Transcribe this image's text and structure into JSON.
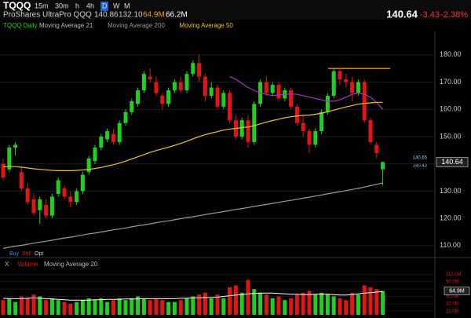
{
  "toolbar": {
    "symbol": "TQQQ",
    "intervals": [
      "15m",
      "30m",
      "h",
      "4h",
      "D",
      "W",
      "M"
    ]
  },
  "quote": {
    "name": "ProShares UltraPro QQQ",
    "high": "140.86",
    "low": "132.10",
    "volume": "64.9M",
    "avg_volume": "66.2M",
    "last": "140.64",
    "change": "-3.43",
    "change_pct": "-2.38%"
  },
  "chart_data": {
    "type": "candlestick",
    "title": "TQQQ Daily",
    "up_color": "#1fd11f",
    "down_color": "#e31414",
    "open": [
      140,
      138,
      146,
      137,
      131,
      127,
      123,
      125,
      121,
      129,
      131,
      128,
      126,
      130,
      137,
      141,
      146,
      149,
      151,
      148,
      155,
      159,
      162,
      167,
      172,
      170,
      165,
      162,
      167,
      170,
      167,
      173,
      177,
      172,
      165,
      168,
      161,
      166,
      156,
      150,
      156,
      148,
      162,
      170,
      166,
      169,
      164,
      167,
      161,
      155,
      152,
      147,
      152,
      159,
      165,
      174,
      171,
      170,
      166,
      170,
      156,
      147,
      138
    ],
    "high": [
      142,
      147,
      148,
      139,
      133,
      129,
      128,
      127,
      129,
      135,
      132,
      130,
      131,
      137,
      143,
      147,
      151,
      153,
      153,
      156,
      160,
      164,
      168,
      174,
      175,
      172,
      166,
      168,
      171,
      172,
      174,
      178,
      180,
      173,
      170,
      169,
      167,
      167,
      158,
      157,
      158,
      163,
      171,
      172,
      170,
      170,
      168,
      168,
      162,
      158,
      153,
      153,
      160,
      166,
      175,
      175,
      173,
      172,
      171,
      171,
      157,
      148,
      140.86
    ],
    "low": [
      134,
      137,
      143,
      130,
      125,
      121,
      118,
      120,
      120,
      128,
      127,
      124,
      125,
      129,
      136,
      140,
      145,
      148,
      147,
      147,
      154,
      158,
      161,
      166,
      170,
      165,
      160,
      161,
      166,
      166,
      166,
      172,
      170,
      163,
      164,
      160,
      160,
      155,
      149,
      149,
      146,
      147,
      161,
      165,
      165,
      163,
      163,
      160,
      154,
      150,
      144,
      146,
      151,
      158,
      164,
      169,
      168,
      163,
      165,
      155,
      147,
      142,
      132.1
    ],
    "close": [
      135,
      146,
      147,
      131,
      126,
      122,
      127,
      121,
      128,
      134,
      128,
      126,
      130,
      136,
      142,
      146,
      150,
      152,
      148,
      155,
      159,
      163,
      167,
      173,
      171,
      166,
      162,
      167,
      170,
      167,
      173,
      177,
      172,
      165,
      168,
      161,
      166,
      156,
      150,
      156,
      148,
      162,
      170,
      166,
      169,
      164,
      167,
      161,
      155,
      152,
      147,
      152,
      159,
      165,
      174,
      171,
      170,
      166,
      170,
      156,
      148,
      144,
      140.64
    ],
    "ylim": [
      106.5,
      188.6
    ],
    "yticks": [
      {
        "value": 110,
        "label": "110.00"
      },
      {
        "value": 120,
        "label": "120.00"
      },
      {
        "value": 130,
        "label": "130.00"
      },
      {
        "value": 140,
        "label": "140.00"
      },
      {
        "value": 150,
        "label": "150.00"
      },
      {
        "value": 160,
        "label": "160.00"
      },
      {
        "value": 170,
        "label": "170.00"
      },
      {
        "value": 180,
        "label": "180.00"
      }
    ],
    "grid": true,
    "bid": "140.65",
    "ask": "140.43",
    "hline": {
      "value": 175,
      "color": "#e07b1a"
    },
    "series": [
      {
        "name": "Moving Average 21",
        "color": "#b02cc4",
        "values": [
          null,
          null,
          null,
          null,
          null,
          null,
          null,
          null,
          null,
          null,
          null,
          null,
          null,
          null,
          null,
          null,
          null,
          null,
          null,
          null,
          null,
          null,
          null,
          null,
          null,
          null,
          null,
          null,
          null,
          null,
          null,
          null,
          null,
          null,
          null,
          null,
          null,
          172,
          171,
          169.5,
          168,
          167,
          166,
          165.5,
          165,
          165.3,
          165.5,
          165.6,
          165.5,
          165,
          164.5,
          164,
          163.5,
          163,
          163,
          163.5,
          164.5,
          165.5,
          166,
          165.5,
          164.5,
          162.5,
          160
        ]
      },
      {
        "name": "Moving Average 200",
        "color": "#9a9a9a",
        "values": [
          109,
          109.4,
          109.8,
          110.1,
          110.5,
          110.9,
          111.3,
          111.6,
          112,
          112.4,
          112.8,
          113.1,
          113.5,
          113.9,
          114.3,
          114.6,
          115,
          115.4,
          115.8,
          116.1,
          116.5,
          116.9,
          117.3,
          117.6,
          118,
          118.4,
          118.8,
          119.1,
          119.5,
          119.9,
          120.3,
          120.6,
          121,
          121.4,
          121.8,
          122.1,
          122.5,
          122.9,
          123.3,
          123.6,
          124,
          124.4,
          124.8,
          125.1,
          125.5,
          125.9,
          126.3,
          126.6,
          127,
          127.4,
          127.8,
          128.2,
          128.6,
          129,
          129.4,
          129.8,
          130.2,
          130.6,
          131,
          131.5,
          132,
          132.5,
          133
        ]
      },
      {
        "name": "Moving Average 50",
        "color": "#f0c419",
        "values": [
          139,
          139,
          139,
          138.8,
          138.5,
          138.2,
          138,
          137.8,
          137.6,
          137.5,
          137.5,
          137.5,
          137.6,
          137.8,
          138,
          138.3,
          138.7,
          139.2,
          139.7,
          140.3,
          141,
          141.8,
          142.6,
          143.4,
          144.2,
          144.9,
          145.5,
          146.1,
          146.8,
          147.5,
          148.3,
          149.2,
          150,
          150.7,
          151.3,
          151.8,
          152.4,
          152.8,
          153,
          153.3,
          153.5,
          154,
          154.7,
          155.3,
          155.9,
          156.4,
          156.9,
          157.3,
          157.6,
          157.8,
          157.9,
          158.2,
          158.6,
          159.1,
          159.7,
          160.3,
          160.9,
          161.4,
          161.9,
          162.2,
          162.4,
          162.6,
          162.6
        ]
      }
    ]
  },
  "volume_chart": {
    "type": "bar",
    "close_button": "X",
    "title": "Volume",
    "values": [
      40,
      45,
      35,
      50,
      45,
      55,
      50,
      40,
      45,
      40,
      35,
      30,
      35,
      40,
      45,
      40,
      45,
      35,
      40,
      45,
      40,
      45,
      50,
      45,
      40,
      45,
      40,
      35,
      35,
      40,
      45,
      50,
      55,
      60,
      45,
      55,
      45,
      75,
      80,
      60,
      95,
      70,
      60,
      55,
      45,
      50,
      40,
      45,
      55,
      60,
      65,
      55,
      60,
      55,
      50,
      45,
      40,
      60,
      55,
      80,
      75,
      70,
      64.9
    ],
    "ylim": [
      0,
      130
    ],
    "yticks": [
      {
        "value": 10,
        "label": "10.0M"
      },
      {
        "value": 30,
        "label": "30.0M"
      },
      {
        "value": 50,
        "label": "50.0M"
      },
      {
        "value": 70,
        "label": "70.0M"
      },
      {
        "value": 90,
        "label": "90.0M"
      },
      {
        "value": 110,
        "label": "110.0M"
      }
    ],
    "series": [
      {
        "name": "Moving Average 20",
        "color": "#ffffff",
        "values": [
          45,
          44,
          44,
          44,
          45,
          46,
          45,
          44,
          43,
          42,
          41,
          40,
          40,
          40,
          40,
          41,
          41,
          42,
          42,
          42,
          43,
          43,
          43,
          44,
          44,
          44,
          44,
          44,
          44,
          45,
          45,
          46,
          46,
          47,
          47,
          48,
          50,
          52,
          54,
          55,
          57,
          58,
          59,
          59,
          59,
          58,
          57,
          56,
          56,
          55,
          55,
          56,
          56,
          56,
          55,
          54,
          54,
          55,
          57,
          59,
          60,
          62,
          63
        ]
      }
    ]
  },
  "trade_buttons": [
    "Buy",
    "Sell",
    "Opt"
  ]
}
